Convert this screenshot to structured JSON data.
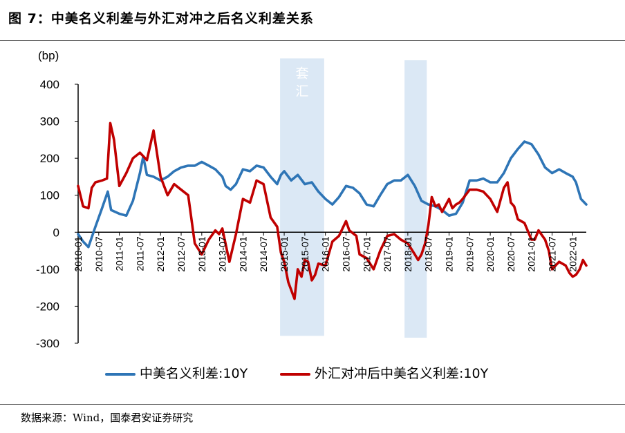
{
  "title": "图 7：中美名义利差与外汇对冲之后名义利差关系",
  "source": "数据来源：Wind，国泰君安证券研究",
  "chart_data": {
    "type": "line",
    "title": "中美名义利差与外汇对冲之后名义利差关系",
    "ylabel": "(bp)",
    "ylim": [
      -300,
      400
    ],
    "yticks": [
      400,
      300,
      200,
      100,
      0,
      -100,
      -200,
      -300
    ],
    "xlim": [
      2010.0,
      2022.33
    ],
    "x_ticks": [
      {
        "x": 2010.0,
        "label": "2010-01"
      },
      {
        "x": 2010.5,
        "label": "2010-07"
      },
      {
        "x": 2011.0,
        "label": "2011-01"
      },
      {
        "x": 2011.5,
        "label": "2011-07"
      },
      {
        "x": 2012.0,
        "label": "2012-01"
      },
      {
        "x": 2012.5,
        "label": "2012-07"
      },
      {
        "x": 2013.0,
        "label": "2013-01"
      },
      {
        "x": 2013.5,
        "label": "2013-07"
      },
      {
        "x": 2014.0,
        "label": "2014-01"
      },
      {
        "x": 2014.5,
        "label": "2014-07"
      },
      {
        "x": 2015.0,
        "label": "2015-01"
      },
      {
        "x": 2015.5,
        "label": "2015-07"
      },
      {
        "x": 2016.0,
        "label": "2016-01"
      },
      {
        "x": 2016.5,
        "label": "2016-07"
      },
      {
        "x": 2017.0,
        "label": "2017-01"
      },
      {
        "x": 2017.5,
        "label": "2017-07"
      },
      {
        "x": 2018.0,
        "label": "2018-01"
      },
      {
        "x": 2018.5,
        "label": "2018-07"
      },
      {
        "x": 2019.0,
        "label": "2019-01"
      },
      {
        "x": 2019.5,
        "label": "2019-07"
      },
      {
        "x": 2020.0,
        "label": "2020-01"
      },
      {
        "x": 2020.5,
        "label": "2020-07"
      },
      {
        "x": 2021.0,
        "label": "2021-01"
      },
      {
        "x": 2021.5,
        "label": "2021-07"
      },
      {
        "x": 2022.0,
        "label": "2022-01"
      }
    ],
    "shaded_regions": [
      {
        "x0": 2014.9,
        "x1": 2015.97,
        "label": "套汇",
        "y_top": 470,
        "y_bottom": -280
      },
      {
        "x0": 2017.92,
        "x1": 2018.46,
        "label": "",
        "y_top": 465,
        "y_bottom": -285
      }
    ],
    "series": [
      {
        "name": "中美名义利差:10Y",
        "color": "#2e75b6",
        "points": [
          [
            2010.0,
            -5
          ],
          [
            2010.12,
            -25
          ],
          [
            2010.25,
            -40
          ],
          [
            2010.42,
            15
          ],
          [
            2010.58,
            65
          ],
          [
            2010.72,
            110
          ],
          [
            2010.8,
            60
          ],
          [
            2011.0,
            50
          ],
          [
            2011.17,
            45
          ],
          [
            2011.33,
            85
          ],
          [
            2011.5,
            160
          ],
          [
            2011.58,
            205
          ],
          [
            2011.67,
            155
          ],
          [
            2011.83,
            150
          ],
          [
            2012.0,
            140
          ],
          [
            2012.17,
            150
          ],
          [
            2012.33,
            165
          ],
          [
            2012.5,
            175
          ],
          [
            2012.67,
            180
          ],
          [
            2012.83,
            180
          ],
          [
            2013.0,
            190
          ],
          [
            2013.17,
            180
          ],
          [
            2013.33,
            170
          ],
          [
            2013.5,
            150
          ],
          [
            2013.58,
            125
          ],
          [
            2013.7,
            115
          ],
          [
            2013.83,
            130
          ],
          [
            2014.0,
            170
          ],
          [
            2014.17,
            165
          ],
          [
            2014.33,
            180
          ],
          [
            2014.5,
            175
          ],
          [
            2014.67,
            150
          ],
          [
            2014.83,
            130
          ],
          [
            2014.92,
            155
          ],
          [
            2015.0,
            165
          ],
          [
            2015.17,
            140
          ],
          [
            2015.33,
            155
          ],
          [
            2015.5,
            130
          ],
          [
            2015.67,
            135
          ],
          [
            2015.83,
            110
          ],
          [
            2016.0,
            90
          ],
          [
            2016.17,
            75
          ],
          [
            2016.33,
            95
          ],
          [
            2016.5,
            125
          ],
          [
            2016.67,
            120
          ],
          [
            2016.83,
            105
          ],
          [
            2017.0,
            75
          ],
          [
            2017.17,
            70
          ],
          [
            2017.33,
            100
          ],
          [
            2017.5,
            130
          ],
          [
            2017.67,
            140
          ],
          [
            2017.83,
            140
          ],
          [
            2018.0,
            155
          ],
          [
            2018.17,
            125
          ],
          [
            2018.33,
            85
          ],
          [
            2018.5,
            75
          ],
          [
            2018.67,
            70
          ],
          [
            2018.83,
            60
          ],
          [
            2019.0,
            45
          ],
          [
            2019.17,
            50
          ],
          [
            2019.33,
            80
          ],
          [
            2019.5,
            140
          ],
          [
            2019.67,
            140
          ],
          [
            2019.83,
            145
          ],
          [
            2020.0,
            135
          ],
          [
            2020.17,
            135
          ],
          [
            2020.33,
            160
          ],
          [
            2020.5,
            200
          ],
          [
            2020.67,
            225
          ],
          [
            2020.83,
            245
          ],
          [
            2021.0,
            238
          ],
          [
            2021.17,
            210
          ],
          [
            2021.33,
            175
          ],
          [
            2021.5,
            160
          ],
          [
            2021.67,
            170
          ],
          [
            2021.83,
            160
          ],
          [
            2022.0,
            150
          ],
          [
            2022.08,
            135
          ],
          [
            2022.2,
            90
          ],
          [
            2022.33,
            75
          ]
        ]
      },
      {
        "name": "外汇对冲后中美名义利差:10Y",
        "color": "#c00000",
        "points": [
          [
            2010.0,
            125
          ],
          [
            2010.12,
            70
          ],
          [
            2010.25,
            65
          ],
          [
            2010.33,
            120
          ],
          [
            2010.42,
            135
          ],
          [
            2010.58,
            140
          ],
          [
            2010.7,
            145
          ],
          [
            2010.78,
            295
          ],
          [
            2010.87,
            250
          ],
          [
            2011.0,
            125
          ],
          [
            2011.17,
            160
          ],
          [
            2011.33,
            200
          ],
          [
            2011.5,
            215
          ],
          [
            2011.67,
            195
          ],
          [
            2011.83,
            275
          ],
          [
            2012.0,
            150
          ],
          [
            2012.17,
            100
          ],
          [
            2012.33,
            130
          ],
          [
            2012.5,
            115
          ],
          [
            2012.67,
            100
          ],
          [
            2012.83,
            -30
          ],
          [
            2013.0,
            -60
          ],
          [
            2013.17,
            -20
          ],
          [
            2013.33,
            5
          ],
          [
            2013.42,
            -5
          ],
          [
            2013.5,
            10
          ],
          [
            2013.67,
            -80
          ],
          [
            2013.83,
            -5
          ],
          [
            2014.0,
            90
          ],
          [
            2014.17,
            80
          ],
          [
            2014.33,
            140
          ],
          [
            2014.5,
            130
          ],
          [
            2014.67,
            40
          ],
          [
            2014.83,
            15
          ],
          [
            2014.92,
            -55
          ],
          [
            2015.0,
            -80
          ],
          [
            2015.1,
            -135
          ],
          [
            2015.2,
            -165
          ],
          [
            2015.25,
            -180
          ],
          [
            2015.33,
            -100
          ],
          [
            2015.42,
            -120
          ],
          [
            2015.5,
            -75
          ],
          [
            2015.58,
            -80
          ],
          [
            2015.67,
            -130
          ],
          [
            2015.75,
            -115
          ],
          [
            2015.83,
            -85
          ],
          [
            2016.0,
            -90
          ],
          [
            2016.17,
            -25
          ],
          [
            2016.33,
            -10
          ],
          [
            2016.5,
            30
          ],
          [
            2016.58,
            5
          ],
          [
            2016.75,
            -10
          ],
          [
            2016.83,
            -60
          ],
          [
            2017.0,
            -70
          ],
          [
            2017.17,
            -100
          ],
          [
            2017.33,
            -50
          ],
          [
            2017.5,
            -10
          ],
          [
            2017.67,
            -5
          ],
          [
            2017.83,
            -20
          ],
          [
            2018.0,
            -30
          ],
          [
            2018.17,
            -60
          ],
          [
            2018.25,
            -75
          ],
          [
            2018.33,
            -60
          ],
          [
            2018.42,
            -30
          ],
          [
            2018.5,
            20
          ],
          [
            2018.58,
            95
          ],
          [
            2018.67,
            70
          ],
          [
            2018.75,
            75
          ],
          [
            2018.83,
            55
          ],
          [
            2019.0,
            90
          ],
          [
            2019.08,
            65
          ],
          [
            2019.17,
            75
          ],
          [
            2019.25,
            80
          ],
          [
            2019.33,
            90
          ],
          [
            2019.5,
            115
          ],
          [
            2019.67,
            115
          ],
          [
            2019.83,
            110
          ],
          [
            2020.0,
            90
          ],
          [
            2020.17,
            55
          ],
          [
            2020.33,
            120
          ],
          [
            2020.42,
            135
          ],
          [
            2020.5,
            80
          ],
          [
            2020.58,
            70
          ],
          [
            2020.67,
            35
          ],
          [
            2020.83,
            25
          ],
          [
            2021.0,
            -20
          ],
          [
            2021.08,
            -20
          ],
          [
            2021.17,
            5
          ],
          [
            2021.33,
            -20
          ],
          [
            2021.42,
            -50
          ],
          [
            2021.5,
            -100
          ],
          [
            2021.67,
            -80
          ],
          [
            2021.83,
            -90
          ],
          [
            2021.92,
            -110
          ],
          [
            2022.0,
            -120
          ],
          [
            2022.08,
            -115
          ],
          [
            2022.17,
            -100
          ],
          [
            2022.25,
            -75
          ],
          [
            2022.33,
            -90
          ]
        ]
      }
    ],
    "legend": [
      {
        "label": "中美名义利差:10Y",
        "color": "#2e75b6"
      },
      {
        "label": "外汇对冲后中美名义利差:10Y",
        "color": "#c00000"
      }
    ]
  }
}
